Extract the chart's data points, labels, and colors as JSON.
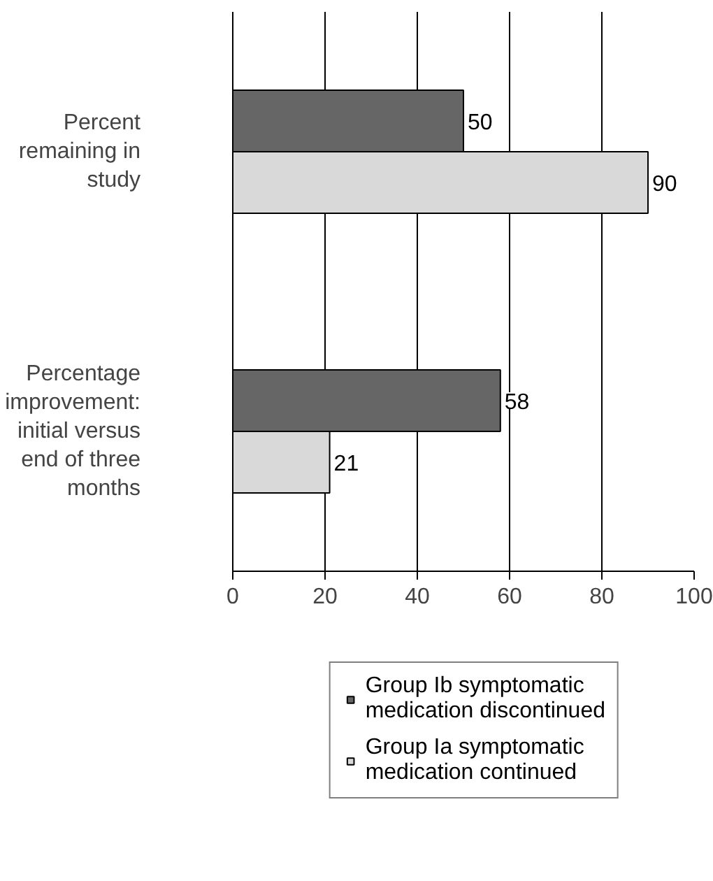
{
  "chart_data": {
    "type": "bar",
    "orientation": "horizontal",
    "categories": [
      "Percent remaining in study",
      "Percentage improvement: initial versus end of three months"
    ],
    "series": [
      {
        "name": "Group Ib symptomatic medication discontinued",
        "color": "#666666",
        "values": [
          50,
          58
        ]
      },
      {
        "name": "Group Ia symptomatic medication continued",
        "color": "#d9d9d9",
        "values": [
          90,
          21
        ]
      }
    ],
    "xlim": [
      0,
      100
    ],
    "xticks": [
      0,
      20,
      40,
      60,
      80,
      100
    ],
    "grid": "x",
    "data_labels": true,
    "legend": "bottom"
  }
}
